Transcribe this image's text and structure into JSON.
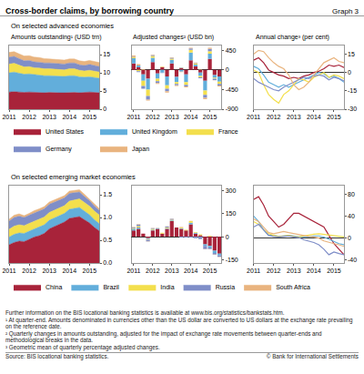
{
  "title": "Cross-border claims, by borrowing country",
  "graph_label": "Graph 3",
  "row_titles": [
    "On selected advanced economies",
    "On selected emerging market economies"
  ],
  "chart_data": [
    {
      "type": "area",
      "title": "Amounts outstanding¹ (USD trn)",
      "stacked": true,
      "legend": "bottom",
      "grid": false,
      "categories": [
        "2011",
        null,
        null,
        null,
        "2012",
        null,
        null,
        null,
        "2013",
        null,
        null,
        null,
        "2014",
        null,
        null,
        null,
        "2015",
        null,
        null
      ],
      "ylim": [
        0,
        17.5
      ],
      "yticks": [
        0,
        5,
        10,
        15
      ],
      "series": [
        {
          "name": "United States",
          "color": "#a8233a",
          "values": [
            4.7,
            4.8,
            4.7,
            4.6,
            4.7,
            4.6,
            4.6,
            4.5,
            4.6,
            4.5,
            4.5,
            4.5,
            4.6,
            4.6,
            4.5,
            4.6,
            4.7,
            4.6,
            4.5
          ]
        },
        {
          "name": "United Kingdom",
          "color": "#62aedb",
          "values": [
            5.3,
            5.4,
            5.2,
            5.0,
            5.0,
            4.9,
            4.8,
            4.7,
            4.6,
            4.6,
            4.5,
            4.5,
            4.6,
            4.6,
            4.4,
            4.2,
            4.2,
            4.1,
            4.0
          ]
        },
        {
          "name": "France",
          "color": "#f3df4d",
          "values": [
            2.4,
            2.4,
            2.2,
            2.0,
            2.0,
            1.9,
            1.9,
            1.9,
            1.9,
            1.9,
            1.8,
            1.8,
            1.9,
            1.9,
            1.8,
            1.7,
            1.8,
            1.8,
            1.7
          ]
        },
        {
          "name": "Germany",
          "color": "#7f8ec8",
          "values": [
            1.9,
            1.9,
            1.8,
            1.7,
            1.7,
            1.6,
            1.6,
            1.6,
            1.6,
            1.6,
            1.6,
            1.6,
            1.6,
            1.6,
            1.5,
            1.5,
            1.6,
            1.5,
            1.5
          ]
        },
        {
          "name": "Japan",
          "color": "#e9b47f",
          "values": [
            1.3,
            1.3,
            1.3,
            1.3,
            1.3,
            1.3,
            1.3,
            1.2,
            1.1,
            1.1,
            1.1,
            1.1,
            1.1,
            1.1,
            1.1,
            1.1,
            1.1,
            1.1,
            1.1
          ]
        }
      ]
    },
    {
      "type": "bar",
      "title": "Adjusted changes² (USD bn)",
      "stacked": true,
      "grid": false,
      "categories": [
        "2011",
        null,
        null,
        null,
        "2012",
        null,
        null,
        null,
        "2013",
        null,
        null,
        null,
        "2014",
        null,
        null,
        null,
        "2015",
        null,
        null
      ],
      "ylim": [
        -900,
        560
      ],
      "yticks": [
        -900,
        -450,
        0,
        450
      ],
      "series": [
        {
          "name": "United States",
          "color": "#a8233a",
          "values": [
            150,
            60,
            -100,
            -200,
            180,
            -80,
            60,
            -150,
            150,
            -160,
            40,
            -100,
            220,
            80,
            -60,
            -250,
            250,
            -120,
            -150
          ]
        },
        {
          "name": "United Kingdom",
          "color": "#62aedb",
          "values": [
            120,
            40,
            -150,
            -250,
            100,
            -120,
            -60,
            -200,
            80,
            -120,
            -40,
            -180,
            180,
            40,
            -80,
            -220,
            120,
            -60,
            -120
          ]
        },
        {
          "name": "France",
          "color": "#f3df4d",
          "values": [
            20,
            -30,
            -120,
            -150,
            40,
            -60,
            10,
            -80,
            30,
            -40,
            10,
            -60,
            60,
            30,
            -30,
            -100,
            60,
            -20,
            -50
          ]
        },
        {
          "name": "Germany",
          "color": "#7f8ec8",
          "values": [
            10,
            -20,
            -60,
            -80,
            20,
            -40,
            -10,
            -60,
            20,
            -30,
            10,
            -40,
            30,
            10,
            -20,
            -70,
            50,
            -30,
            -40
          ]
        },
        {
          "name": "Japan",
          "color": "#e9b47f",
          "values": [
            30,
            30,
            20,
            -20,
            10,
            -20,
            10,
            -30,
            10,
            -20,
            -10,
            -20,
            20,
            10,
            10,
            -30,
            30,
            -10,
            -20
          ]
        }
      ]
    },
    {
      "type": "line",
      "title": "Annual change³ (per cent)",
      "grid": false,
      "categories": [
        "2011",
        null,
        null,
        null,
        "2012",
        null,
        null,
        null,
        "2013",
        null,
        null,
        null,
        "2014",
        null,
        null,
        null,
        "2015",
        null,
        null
      ],
      "ylim": [
        -30,
        22
      ],
      "yticks": [
        -30,
        -15,
        0,
        15
      ],
      "series": [
        {
          "name": "United States",
          "color": "#a8233a",
          "values": [
            10,
            12,
            8,
            2,
            0,
            -2,
            -3,
            -5,
            -4,
            -5,
            -3,
            -2,
            0,
            1,
            3,
            6,
            5,
            6,
            4
          ]
        },
        {
          "name": "United Kingdom",
          "color": "#62aedb",
          "values": [
            5,
            3,
            -2,
            -8,
            -10,
            -12,
            -10,
            -12,
            -10,
            -8,
            -6,
            -4,
            -2,
            0,
            -1,
            -4,
            -3,
            -5,
            -8
          ]
        },
        {
          "name": "France",
          "color": "#f3df4d",
          "values": [
            2,
            0,
            -10,
            -18,
            -22,
            -25,
            -18,
            -15,
            -10,
            -5,
            -6,
            -8,
            -4,
            -2,
            0,
            -4,
            -2,
            -3,
            -5
          ]
        },
        {
          "name": "Germany",
          "color": "#7f8ec8",
          "values": [
            -5,
            -8,
            -10,
            -12,
            -14,
            -15,
            -12,
            -10,
            -8,
            -6,
            -4,
            -5,
            -3,
            -2,
            -3,
            -6,
            -4,
            -5,
            -7
          ]
        },
        {
          "name": "Japan",
          "color": "#e9b47f",
          "values": [
            15,
            18,
            17,
            12,
            8,
            5,
            3,
            -2,
            -10,
            -14,
            -12,
            -8,
            -2,
            3,
            8,
            10,
            12,
            9,
            8
          ]
        }
      ]
    },
    {
      "type": "area",
      "stacked": true,
      "legend": "bottom",
      "grid": false,
      "categories": [
        "2011",
        null,
        null,
        null,
        "2012",
        null,
        null,
        null,
        "2013",
        null,
        null,
        null,
        "2014",
        null,
        null,
        null,
        "2015",
        null,
        null
      ],
      "ylim": [
        0,
        1.7
      ],
      "yticks": [
        {
          "value": 0,
          "label": "0.0"
        },
        0.5,
        {
          "value": 1,
          "label": "1.0"
        },
        1.5
      ],
      "series": [
        {
          "name": "China",
          "color": "#a8233a",
          "values": [
            0.4,
            0.45,
            0.48,
            0.47,
            0.52,
            0.57,
            0.6,
            0.65,
            0.75,
            0.8,
            0.85,
            0.9,
            0.98,
            1.0,
            1.02,
            0.95,
            0.88,
            0.78,
            0.7
          ]
        },
        {
          "name": "Brazil",
          "color": "#62aedb",
          "values": [
            0.17,
            0.18,
            0.18,
            0.18,
            0.18,
            0.18,
            0.19,
            0.19,
            0.19,
            0.19,
            0.19,
            0.19,
            0.2,
            0.2,
            0.2,
            0.19,
            0.18,
            0.17,
            0.16
          ]
        },
        {
          "name": "India",
          "color": "#f3df4d",
          "values": [
            0.17,
            0.18,
            0.18,
            0.17,
            0.17,
            0.17,
            0.17,
            0.17,
            0.17,
            0.17,
            0.17,
            0.17,
            0.18,
            0.18,
            0.19,
            0.19,
            0.19,
            0.19,
            0.19
          ]
        },
        {
          "name": "Russia",
          "color": "#7f8ec8",
          "values": [
            0.18,
            0.19,
            0.19,
            0.18,
            0.18,
            0.18,
            0.18,
            0.18,
            0.18,
            0.18,
            0.17,
            0.17,
            0.17,
            0.16,
            0.15,
            0.13,
            0.12,
            0.11,
            0.1
          ]
        },
        {
          "name": "South Africa",
          "color": "#e9b47f",
          "values": [
            0.04,
            0.05,
            0.05,
            0.04,
            0.04,
            0.05,
            0.05,
            0.05,
            0.05,
            0.05,
            0.05,
            0.05,
            0.05,
            0.05,
            0.05,
            0.05,
            0.04,
            0.04,
            0.04
          ]
        }
      ]
    },
    {
      "type": "bar",
      "stacked": true,
      "grid": false,
      "categories": [
        "2011",
        null,
        null,
        null,
        "2012",
        null,
        null,
        null,
        "2013",
        null,
        null,
        null,
        "2014",
        null,
        null,
        null,
        "2015",
        null,
        null
      ],
      "ylim": [
        -170,
        330
      ],
      "yticks": [
        -150,
        0,
        150,
        300
      ],
      "series": [
        {
          "name": "China",
          "color": "#a8233a",
          "values": [
            40,
            50,
            20,
            -10,
            40,
            50,
            20,
            50,
            100,
            60,
            50,
            40,
            80,
            20,
            10,
            -50,
            -60,
            -90,
            -110
          ]
        },
        {
          "name": "Brazil",
          "color": "#62aedb",
          "values": [
            10,
            10,
            0,
            -5,
            5,
            5,
            0,
            5,
            5,
            0,
            5,
            0,
            10,
            5,
            0,
            -10,
            -10,
            -15,
            -10
          ]
        },
        {
          "name": "India",
          "color": "#f3df4d",
          "values": [
            5,
            8,
            0,
            -5,
            5,
            0,
            5,
            5,
            5,
            0,
            5,
            5,
            10,
            5,
            5,
            0,
            5,
            0,
            0
          ]
        },
        {
          "name": "Russia",
          "color": "#7f8ec8",
          "values": [
            5,
            10,
            0,
            -10,
            5,
            0,
            0,
            5,
            5,
            0,
            -5,
            -5,
            -5,
            -10,
            -15,
            -20,
            -10,
            -10,
            -10
          ]
        },
        {
          "name": "South Africa",
          "color": "#e9b47f",
          "values": [
            2,
            3,
            0,
            -2,
            2,
            2,
            0,
            2,
            2,
            0,
            2,
            0,
            2,
            0,
            0,
            -2,
            -2,
            -2,
            -2
          ]
        }
      ]
    },
    {
      "type": "line",
      "grid": false,
      "categories": [
        "2011",
        null,
        null,
        null,
        "2012",
        null,
        null,
        null,
        "2013",
        null,
        null,
        null,
        "2014",
        null,
        null,
        null,
        "2015",
        null,
        null
      ],
      "ylim": [
        -45,
        95
      ],
      "yticks": [
        -40,
        0,
        40,
        80
      ],
      "series": [
        {
          "name": "China",
          "color": "#a8233a",
          "values": [
            70,
            75,
            60,
            40,
            30,
            20,
            25,
            35,
            45,
            45,
            40,
            35,
            30,
            25,
            20,
            5,
            -10,
            -20,
            -30
          ]
        },
        {
          "name": "Brazil",
          "color": "#62aedb",
          "values": [
            40,
            30,
            15,
            5,
            5,
            3,
            4,
            5,
            4,
            2,
            3,
            2,
            4,
            4,
            2,
            -2,
            -5,
            -10,
            -12
          ]
        },
        {
          "name": "India",
          "color": "#f3df4d",
          "values": [
            30,
            25,
            15,
            8,
            5,
            3,
            4,
            5,
            3,
            2,
            4,
            6,
            7,
            8,
            7,
            6,
            4,
            3,
            2
          ]
        },
        {
          "name": "Russia",
          "color": "#7f8ec8",
          "values": [
            20,
            25,
            15,
            5,
            3,
            2,
            3,
            4,
            2,
            1,
            -3,
            -5,
            -8,
            -12,
            -20,
            -30,
            -25,
            -28,
            -30
          ]
        },
        {
          "name": "South Africa",
          "color": "#e9b47f",
          "values": [
            35,
            30,
            20,
            10,
            8,
            10,
            12,
            10,
            8,
            6,
            5,
            3,
            2,
            0,
            -5,
            -8,
            -10,
            -12,
            -15
          ]
        }
      ]
    }
  ],
  "further_information": "Further information on the BIS locational banking statistics is available at www.bis.org/statistics/bankstats.htm.",
  "notes": [
    "¹ At quarter-end. Amounts denominated in currencies other than the US dollar are converted to US dollars at the exchange rate prevailing on the reference date.",
    "² Quarterly changes in amounts outstanding, adjusted for the impact of exchange rate movements between quarter-ends and methodological breaks in the data.",
    "³ Geometric mean of quarterly percentage adjusted changes."
  ],
  "source": "Source: BIS locational banking statistics.",
  "copyright": "© Bank for International Settlements"
}
